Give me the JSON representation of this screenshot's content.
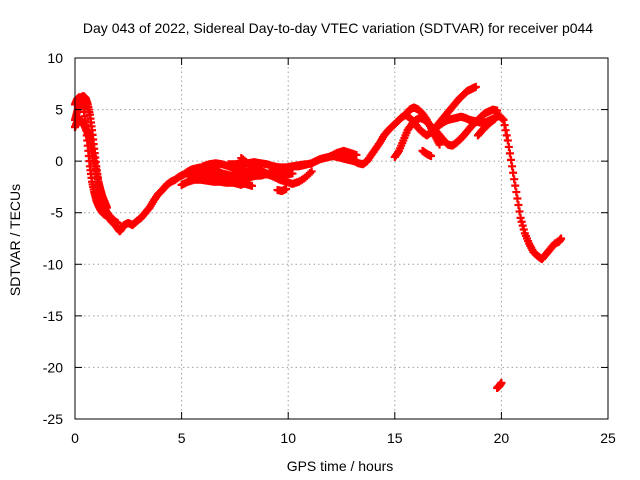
{
  "chart_data": {
    "type": "scatter",
    "title": "Day 043 of 2022, Sidereal Day-to-day VTEC variation (SDTVAR) for receiver p044",
    "xlabel": "GPS time / hours",
    "ylabel": "SDTVAR / TECUs",
    "xlim": [
      0,
      25
    ],
    "ylim": [
      -25,
      10
    ],
    "xticks": [
      0,
      5,
      10,
      15,
      20,
      25
    ],
    "yticks": [
      10,
      5,
      0,
      -5,
      -10,
      -15,
      -20,
      -25
    ],
    "grid": true,
    "marker": "+",
    "series": [
      {
        "name": "SDTVAR p044",
        "color": "#ff0000",
        "tracks": [
          {
            "x": [
              0.0,
              0.1,
              0.2,
              0.3,
              0.4,
              0.5,
              0.6,
              0.7,
              0.8,
              0.9,
              1.0,
              1.1,
              1.2,
              1.3,
              1.4,
              1.5,
              1.6,
              1.7,
              1.8,
              1.9,
              2.0,
              2.1,
              2.2,
              2.3,
              2.5,
              2.7,
              2.9,
              3.1,
              3.3,
              3.5,
              3.7,
              3.9,
              4.1,
              4.3,
              4.5,
              4.7,
              4.9,
              5.1,
              5.3,
              5.5,
              5.7,
              5.9,
              6.1,
              6.3,
              6.5,
              6.7,
              6.9,
              7.1,
              7.3,
              7.5,
              7.7,
              7.9,
              8.1,
              8.3,
              8.5,
              8.7,
              8.9,
              9.1,
              9.3,
              9.5,
              9.7,
              9.9,
              10.1,
              10.3,
              10.5,
              10.7,
              10.9,
              11.1,
              11.3,
              11.5,
              11.7,
              11.9,
              12.1,
              12.3,
              12.5,
              12.7,
              12.9,
              13.1,
              13.3,
              13.5,
              13.7,
              13.9,
              14.1,
              14.3,
              14.5,
              14.7,
              14.9,
              15.1,
              15.3,
              15.5,
              15.7,
              15.9,
              16.1,
              16.3,
              16.5,
              16.7,
              16.9,
              17.1,
              17.3,
              17.5,
              17.7,
              17.9,
              18.1,
              18.3,
              18.5,
              18.7,
              18.9,
              19.1,
              19.3,
              19.5,
              19.7,
              19.9,
              20.1,
              20.3,
              20.5,
              20.7,
              20.9,
              21.1,
              21.3,
              21.5,
              21.7,
              21.9,
              22.1,
              22.3,
              22.5,
              22.7,
              22.8
            ],
            "y": [
              5.5,
              6.0,
              6.2,
              6.0,
              5.2,
              3.5,
              1.5,
              -0.5,
              -2.0,
              -3.0,
              -3.8,
              -4.3,
              -4.7,
              -5.0,
              -5.2,
              -5.3,
              -5.5,
              -5.8,
              -6.0,
              -6.2,
              -6.5,
              -6.8,
              -6.5,
              -6.2,
              -6.0,
              -6.2,
              -5.8,
              -5.5,
              -5.0,
              -4.5,
              -3.8,
              -3.2,
              -2.8,
              -2.3,
              -2.0,
              -1.8,
              -1.5,
              -1.3,
              -1.0,
              -0.8,
              -0.7,
              -0.6,
              -0.7,
              -0.8,
              -0.9,
              -1.0,
              -1.2,
              -1.3,
              -1.4,
              -1.4,
              -1.5,
              -1.6,
              -1.6,
              -1.5,
              -1.4,
              -1.4,
              -1.3,
              -1.2,
              -1.0,
              -0.9,
              -0.8,
              -0.7,
              -0.6,
              -0.5,
              -0.5,
              -0.4,
              -0.3,
              -0.2,
              0.0,
              0.2,
              0.3,
              0.4,
              0.5,
              0.4,
              0.3,
              0.2,
              0.1,
              0.0,
              -0.2,
              -0.3,
              0.0,
              0.6,
              1.2,
              1.8,
              2.5,
              3.0,
              3.4,
              3.8,
              4.2,
              4.5,
              4.2,
              3.8,
              3.2,
              2.8,
              2.5,
              2.8,
              3.2,
              3.5,
              3.8,
              4.0,
              4.1,
              4.2,
              4.3,
              4.2,
              4.0,
              3.9,
              3.8,
              3.7,
              3.8,
              4.0,
              4.2,
              4.4,
              4.0,
              2.0,
              -0.5,
              -3.0,
              -5.5,
              -7.0,
              -8.0,
              -8.8,
              -9.2,
              -9.5,
              -9.0,
              -8.5,
              -8.0,
              -7.8,
              -7.5
            ]
          },
          {
            "x": [
              0.0,
              0.1,
              0.2,
              0.3,
              0.4,
              0.5,
              0.6,
              0.7,
              0.8,
              0.9,
              1.0,
              1.1,
              1.2,
              1.3,
              1.4,
              1.5,
              1.6,
              1.7,
              1.8,
              1.9,
              2.0
            ],
            "y": [
              4.0,
              4.8,
              5.6,
              6.2,
              6.3,
              6.1,
              5.5,
              4.5,
              3.0,
              1.2,
              -0.5,
              -2.0,
              -3.2,
              -4.0,
              -4.6,
              -5.0,
              -5.3,
              -5.5,
              -5.7,
              -5.9,
              -6.0
            ]
          },
          {
            "x": [
              0.0,
              0.1,
              0.2,
              0.3,
              0.4,
              0.5,
              0.6,
              0.7,
              0.8,
              0.9,
              1.0,
              1.1,
              1.2,
              1.3,
              1.4,
              1.5
            ],
            "y": [
              3.3,
              3.8,
              4.0,
              3.9,
              3.6,
              3.2,
              2.7,
              2.0,
              1.0,
              0.0,
              -1.0,
              -2.0,
              -2.8,
              -3.5,
              -4.0,
              -4.5
            ]
          },
          {
            "x": [
              5.0,
              5.3,
              5.6,
              5.9,
              6.2,
              6.5,
              6.8,
              7.1,
              7.4,
              7.7,
              8.0,
              8.3
            ],
            "y": [
              -2.3,
              -2.0,
              -1.8,
              -1.8,
              -1.9,
              -2.0,
              -2.0,
              -2.1,
              -2.1,
              -2.2,
              -2.2,
              -2.4
            ]
          },
          {
            "x": [
              6.0,
              6.3,
              6.6,
              6.9,
              7.2,
              7.5,
              7.8,
              8.1,
              8.4,
              8.7,
              9.0,
              9.3,
              9.6,
              9.9,
              10.2
            ],
            "y": [
              -0.5,
              -0.3,
              -0.2,
              -0.3,
              -0.5,
              -0.7,
              -0.9,
              -1.0,
              -1.1,
              -1.2,
              -1.3,
              -1.4,
              -1.4,
              -1.3,
              -1.2
            ]
          },
          {
            "x": [
              7.8,
              8.1,
              8.4,
              8.7,
              9.0,
              9.3,
              9.6,
              9.9,
              10.2,
              10.5,
              10.8,
              11.1
            ],
            "y": [
              0.3,
              -0.2,
              -0.6,
              -0.9,
              -1.2,
              -1.5,
              -1.8,
              -2.0,
              -2.2,
              -2.0,
              -1.6,
              -1.0
            ]
          },
          {
            "x": [
              7.2,
              7.5,
              7.8,
              8.1,
              8.4,
              8.7,
              9.0,
              9.3,
              9.6,
              9.9,
              10.2,
              10.5,
              10.8
            ],
            "y": [
              -0.3,
              -0.3,
              -0.2,
              -0.2,
              -0.1,
              -0.2,
              -0.3,
              -0.5,
              -0.6,
              -0.6,
              -0.5,
              -0.4,
              -0.3
            ]
          },
          {
            "x": [
              5.4,
              5.7,
              6.0,
              6.3,
              6.6,
              6.9,
              7.2,
              7.5,
              7.8
            ],
            "y": [
              -1.5,
              -1.4,
              -1.3,
              -1.5,
              -1.7,
              -1.9,
              -2.0,
              -2.1,
              -2.3
            ]
          },
          {
            "x": [
              9.5,
              9.7,
              9.9
            ],
            "y": [
              -2.8,
              -2.9,
              -2.7
            ]
          },
          {
            "x": [
              12.0,
              12.3,
              12.6,
              12.9,
              13.2
            ],
            "y": [
              0.5,
              0.8,
              1.0,
              0.8,
              0.6
            ]
          },
          {
            "x": [
              15.0,
              15.2,
              15.4,
              15.6,
              15.8,
              16.0,
              16.2,
              16.4,
              16.6,
              16.8
            ],
            "y": [
              0.4,
              1.0,
              2.0,
              3.0,
              3.6,
              4.0,
              4.2,
              4.0,
              3.6,
              3.2
            ]
          },
          {
            "x": [
              15.5,
              15.7,
              15.9,
              16.1,
              16.3,
              16.5,
              16.7,
              16.9,
              17.1
            ],
            "y": [
              4.5,
              5.0,
              5.2,
              5.0,
              4.6,
              4.0,
              3.2,
              2.4,
              1.6
            ]
          },
          {
            "x": [
              17.0,
              17.2,
              17.4,
              17.6,
              17.8,
              18.0,
              18.2,
              18.4,
              18.6,
              18.8
            ],
            "y": [
              3.5,
              4.0,
              4.5,
              5.0,
              5.5,
              6.0,
              6.4,
              6.8,
              7.0,
              7.2
            ]
          },
          {
            "x": [
              18.0,
              18.2,
              18.4,
              18.6,
              18.8,
              19.0,
              19.2,
              19.4,
              19.6,
              19.8
            ],
            "y": [
              2.0,
              2.4,
              2.9,
              3.4,
              3.8,
              4.2,
              4.6,
              4.8,
              5.0,
              4.9
            ]
          },
          {
            "x": [
              16.3,
              16.5,
              16.7
            ],
            "y": [
              1.0,
              0.7,
              0.5
            ]
          },
          {
            "x": [
              16.9,
              17.1,
              17.3,
              17.5,
              17.7,
              17.9,
              18.1
            ],
            "y": [
              3.0,
              2.5,
              2.0,
              1.6,
              1.5,
              1.8,
              2.2
            ]
          },
          {
            "x": [
              18.9,
              19.1,
              19.3,
              19.5,
              19.7
            ],
            "y": [
              2.5,
              3.0,
              3.4,
              3.8,
              4.1
            ]
          },
          {
            "x": [
              19.8,
              19.9,
              20.0
            ],
            "y": [
              -22.0,
              -21.8,
              -21.5
            ]
          }
        ]
      }
    ]
  }
}
